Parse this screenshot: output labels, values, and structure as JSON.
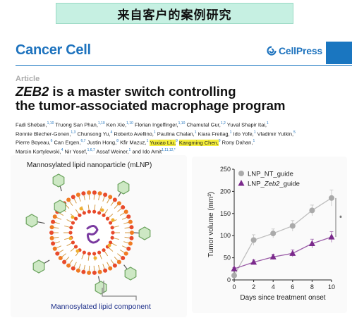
{
  "banner": {
    "text": "来自客户的案例研究"
  },
  "journal": {
    "name": "Cancer Cell",
    "publisher": "CellPress"
  },
  "article": {
    "label": "Article",
    "title_italic": "ZEB2",
    "title_rest_line1": " is a master switch controlling",
    "title_line2": "the tumor-associated macrophage program"
  },
  "authors": {
    "line1": [
      {
        "name": "Fadi Sheban,",
        "sup": "1,10"
      },
      {
        "name": "Truong San Phan,",
        "sup": "1,10"
      },
      {
        "name": "Ken Xie,",
        "sup": "1,10"
      },
      {
        "name": "Florian Ingelfinger,",
        "sup": "1,10"
      },
      {
        "name": "Chamutal Gur,",
        "sup": "1,2"
      },
      {
        "name": "Yuval Shapir Itai,",
        "sup": "1"
      }
    ],
    "line2": [
      {
        "name": "Ronnie Blecher-Gonen,",
        "sup": "1,3"
      },
      {
        "name": "Chunsong Yu,",
        "sup": "4"
      },
      {
        "name": "Roberto Avellino,",
        "sup": "1"
      },
      {
        "name": "Paulina Chalan,",
        "sup": "1"
      },
      {
        "name": "Kiara Freitag,",
        "sup": "1"
      },
      {
        "name": "Ido Yofe,",
        "sup": "1"
      },
      {
        "name": "Vladimir Yutkin,",
        "sup": "5"
      }
    ],
    "line3": [
      {
        "name": "Pierre Boyeau,",
        "sup": "6"
      },
      {
        "name": "Can Ergen,",
        "sup": "6,7"
      },
      {
        "name": "Justin Hong,",
        "sup": "8"
      },
      {
        "name": "Kfir Mazuz,",
        "sup": "1"
      },
      {
        "name": "Yuxiao Liu,",
        "sup": "9",
        "highlight": true
      },
      {
        "name": "Kangming Chen,",
        "sup": "9",
        "highlight": true
      },
      {
        "name": "Rony Dahan,",
        "sup": "1"
      }
    ],
    "line4": [
      {
        "name": "Marcin Kortylewski,",
        "sup": "4"
      },
      {
        "name": "Nir Yosef,",
        "sup": "1,6,7"
      },
      {
        "name": "Assaf Weiner,",
        "sup": "1"
      },
      {
        "name": "and Ido Amit",
        "sup": "1,11,12,*"
      }
    ]
  },
  "figure_left": {
    "title": "Mannosylated lipid nanoparticle (mLNP)",
    "component_label": "Mannosylated lipid component"
  },
  "chart_data": {
    "type": "line",
    "xlabel": "Days since treatment onset",
    "ylabel": "Tumor volume (mm³)",
    "x": [
      0,
      2,
      4,
      6,
      8,
      10
    ],
    "xlim": [
      0,
      10
    ],
    "ylim": [
      0,
      250
    ],
    "yticks": [
      0,
      50,
      100,
      150,
      200,
      250
    ],
    "xticks": [
      0,
      2,
      4,
      6,
      8,
      10
    ],
    "legend_position": "top-left",
    "annotation": "*",
    "series": [
      {
        "name": "LNP_NT_guide",
        "color": "#aaaaaa",
        "marker": "circle",
        "values": [
          10,
          90,
          105,
          122,
          157,
          185
        ],
        "err": [
          3,
          12,
          10,
          12,
          12,
          18
        ]
      },
      {
        "name": "LNP_Zeb2_guide",
        "name_prefix": "LNP_",
        "name_italic": "Zeb2",
        "name_suffix": "_guide",
        "color": "#7b2a8c",
        "marker": "triangle",
        "values": [
          25,
          40,
          52,
          60,
          82,
          97
        ],
        "err": [
          3,
          5,
          6,
          8,
          10,
          12
        ]
      }
    ]
  },
  "colors": {
    "brand_blue": "#1a76c0",
    "banner_bg": "#c6f0e2",
    "highlight": "#f6ef3a",
    "zeb2": "#7b2a8c",
    "nt": "#aaaaaa"
  }
}
